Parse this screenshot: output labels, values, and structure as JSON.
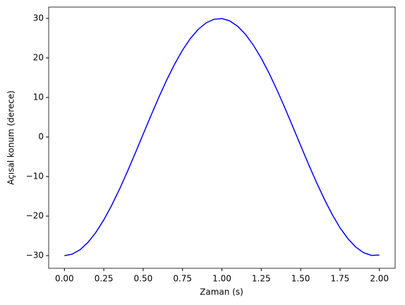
{
  "chart_data": {
    "type": "line",
    "xlabel": "Zaman (s)",
    "ylabel": "Açısal konum (derece)",
    "x": [
      0,
      0.05,
      0.1,
      0.15,
      0.2,
      0.25,
      0.3,
      0.35,
      0.4,
      0.45,
      0.5,
      0.55,
      0.6,
      0.65,
      0.7,
      0.75,
      0.8,
      0.85,
      0.9,
      0.95,
      1.0,
      1.05,
      1.1,
      1.15,
      1.2,
      1.25,
      1.3,
      1.35,
      1.4,
      1.45,
      1.5,
      1.55,
      1.6,
      1.65,
      1.7,
      1.75,
      1.8,
      1.85,
      1.9,
      1.95,
      2.0
    ],
    "series": [
      {
        "color": "#0000ff",
        "values": [
          -30,
          -29.62,
          -28.49,
          -26.63,
          -24.1,
          -20.96,
          -17.29,
          -13.18,
          -8.72,
          -4.06,
          0.72,
          5.47,
          10.09,
          14.45,
          18.45,
          21.97,
          24.92,
          27.24,
          28.87,
          29.77,
          29.96,
          29.36,
          28.0,
          25.94,
          23.22,
          19.91,
          16.1,
          11.88,
          7.34,
          2.63,
          -2.15,
          -6.87,
          -11.42,
          -15.68,
          -19.56,
          -22.96,
          -25.7,
          -27.83,
          -29.26,
          -29.94,
          -29.86
        ]
      }
    ],
    "xlim": [
      -0.1,
      2.1
    ],
    "xticks": [
      {
        "value": 0,
        "label": "0.00"
      },
      {
        "value": 0.25,
        "label": "0.25"
      },
      {
        "value": 0.5,
        "label": "0.50"
      },
      {
        "value": 0.75,
        "label": "0.75"
      },
      {
        "value": 1.0,
        "label": "1.00"
      },
      {
        "value": 1.25,
        "label": "1.25"
      },
      {
        "value": 1.5,
        "label": "1.50"
      },
      {
        "value": 1.75,
        "label": "1.75"
      },
      {
        "value": 2.0,
        "label": "2.00"
      }
    ],
    "ylim": [
      -33.2,
      32.86
    ],
    "yticks": [
      {
        "value": -30,
        "label": "−30"
      },
      {
        "value": -20,
        "label": "−20"
      },
      {
        "value": -10,
        "label": "−10"
      },
      0,
      10,
      20,
      30
    ],
    "grid": false
  }
}
